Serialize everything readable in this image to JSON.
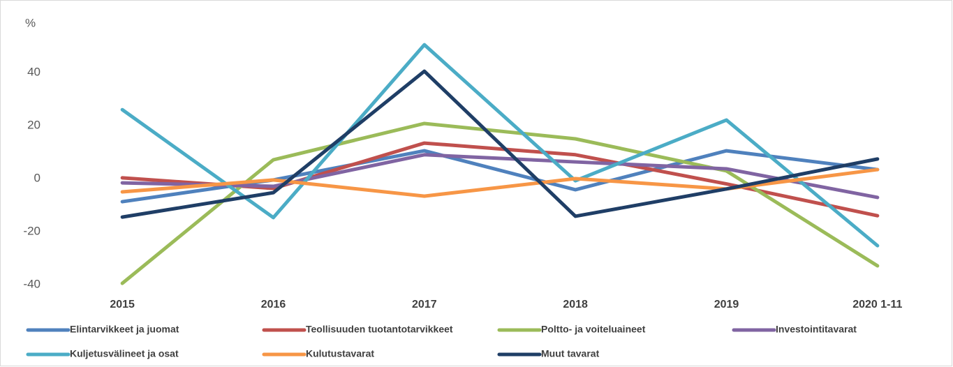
{
  "chart_data": {
    "type": "line",
    "y_axis_label": "%",
    "categories": [
      "2015",
      "2016",
      "2017",
      "2018",
      "2019",
      "2020 1-11"
    ],
    "ylim": [
      -40,
      60
    ],
    "yticks": [
      -40,
      -20,
      0,
      20,
      40
    ],
    "series": [
      {
        "name": "Elintarvikkeet ja juomat",
        "color": "#4f81bd",
        "values": [
          -8.7,
          -0.5,
          10.5,
          -4.2,
          10.5,
          3.4
        ]
      },
      {
        "name": "Teollisuuden tuotantotarvikkeet",
        "color": "#c0504d",
        "values": [
          0.3,
          -3.7,
          13.4,
          9,
          -2,
          -14
        ]
      },
      {
        "name": "Poltto- ja voiteluaineet",
        "color": "#9bbb59",
        "values": [
          -39.5,
          7.1,
          20.8,
          15,
          2.9,
          -32.9
        ]
      },
      {
        "name": "Investointitavarat",
        "color": "#8064a2",
        "values": [
          -1.6,
          -2.9,
          9,
          6.3,
          3.7,
          -7.1
        ]
      },
      {
        "name": "Kuljetusvälineet ja osat",
        "color": "#4bacc6",
        "values": [
          26,
          -14.7,
          50.5,
          -0.8,
          22.1,
          -25.3
        ]
      },
      {
        "name": "Kulutustavarat",
        "color": "#f79646",
        "values": [
          -5,
          -0.5,
          -6.6,
          0,
          -3.9,
          3.4
        ]
      },
      {
        "name": "Muut tavarat",
        "color": "#1f3e66",
        "values": [
          -14.5,
          -5.3,
          40.5,
          -14.2,
          -3.9,
          7.4
        ]
      }
    ]
  }
}
